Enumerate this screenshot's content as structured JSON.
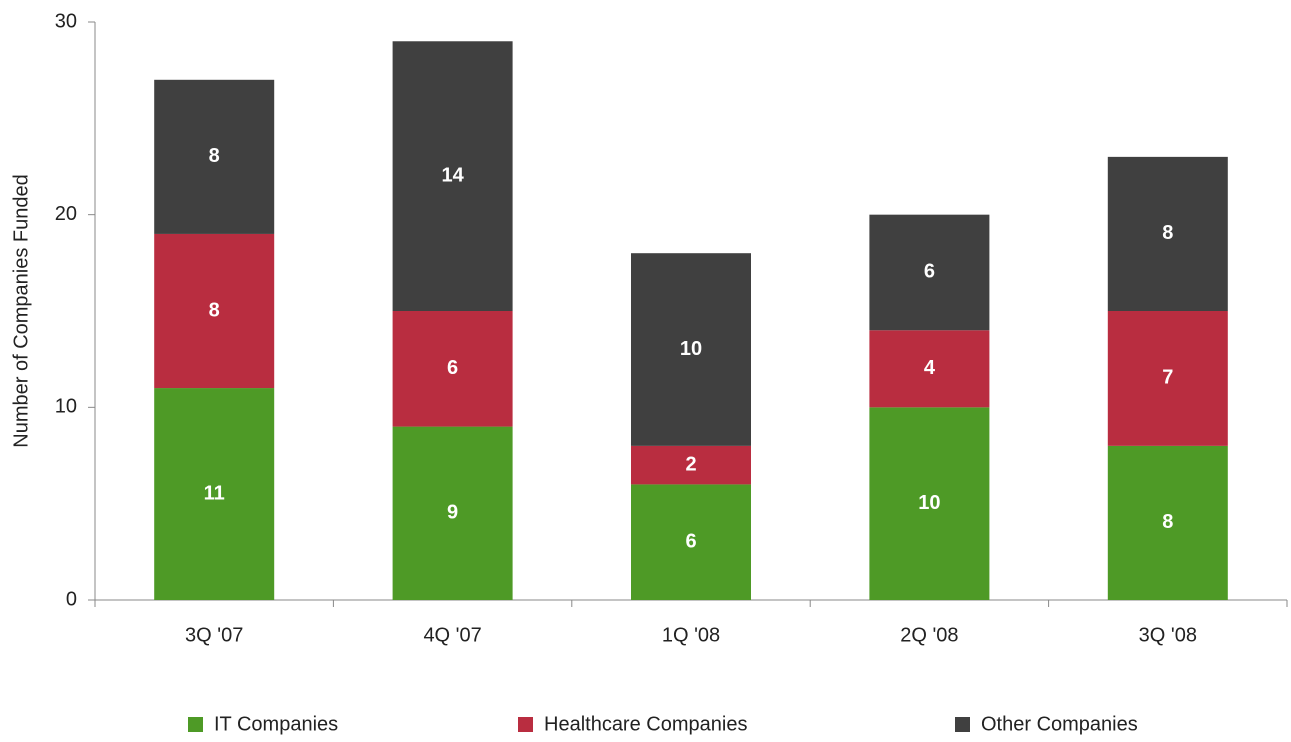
{
  "chart_data": {
    "type": "stacked_bar",
    "categories": [
      "3Q '07",
      "4Q '07",
      "1Q '08",
      "2Q '08",
      "3Q '08"
    ],
    "series": [
      {
        "name": "IT Companies",
        "color": "#4e9a26",
        "values": [
          11,
          9,
          6,
          10,
          8
        ]
      },
      {
        "name": "Healthcare Companies",
        "color": "#b92d40",
        "values": [
          8,
          6,
          2,
          4,
          7
        ]
      },
      {
        "name": "Other Companies",
        "color": "#404040",
        "values": [
          8,
          14,
          10,
          6,
          8
        ]
      }
    ],
    "ylabel": "Number of Companies Funded",
    "ylim": [
      0,
      30
    ],
    "yticks": [
      0,
      10,
      20,
      30
    ],
    "legend": "bottom",
    "grid": false
  }
}
